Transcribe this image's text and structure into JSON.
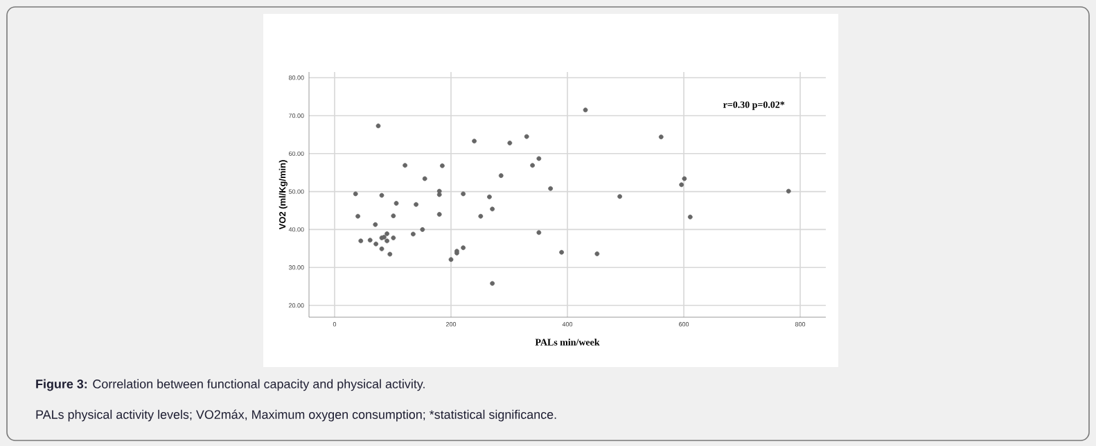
{
  "chart_data": {
    "type": "scatter",
    "xlabel": "PALs min/week",
    "ylabel": "VO2 (ml/Kg/min)",
    "annotations": [
      "r=0.30 p=0.02*",
      "**Figure 3:**  Correlation between functional capacity and physical activity.",
      "PALs physical activity levels; VO2máx, Maximum oxygen consumption; *statistical significance."
    ],
    "x": [
      36,
      40,
      45,
      61,
      71,
      75,
      70,
      81,
      81,
      81,
      85,
      90,
      90,
      95,
      101,
      101,
      106,
      121,
      135,
      140,
      151,
      155,
      180,
      180,
      180,
      185,
      200,
      210,
      210,
      221,
      221,
      240,
      251,
      266,
      271,
      271,
      286,
      301,
      330,
      340,
      351,
      351,
      371,
      390,
      431,
      451,
      490,
      561,
      596,
      601,
      611,
      780
    ],
    "values": [
      49.4,
      43.5,
      37.0,
      37.2,
      36.2,
      67.3,
      41.3,
      49.0,
      34.9,
      37.8,
      38.0,
      38.9,
      37.0,
      33.5,
      37.8,
      43.6,
      46.9,
      56.9,
      38.8,
      46.6,
      40.0,
      53.4,
      50.1,
      49.2,
      44.0,
      56.8,
      32.1,
      34.3,
      33.8,
      35.2,
      49.4,
      63.3,
      43.5,
      48.6,
      45.4,
      25.8,
      54.2,
      62.8,
      64.5,
      56.9,
      58.7,
      39.2,
      50.8,
      34.0,
      71.5,
      33.6,
      48.7,
      64.4,
      51.8,
      53.4,
      43.3,
      50.1
    ],
    "color": "#666666",
    "marker": "circle",
    "grid": true,
    "xlim": [
      -44,
      844
    ],
    "ylim": [
      16.9,
      81.5
    ],
    "xticks": [
      0,
      200,
      400,
      600,
      800
    ],
    "yticks": [
      {
        "value": 20,
        "label": "20.00"
      },
      {
        "value": 30,
        "label": "30.00"
      },
      {
        "value": 40,
        "label": "40.00"
      },
      {
        "value": 50,
        "label": "50.00"
      },
      {
        "value": 60,
        "label": "60.00"
      },
      {
        "value": 70,
        "label": "70.00"
      },
      {
        "value": 80,
        "label": "80.00"
      }
    ]
  }
}
